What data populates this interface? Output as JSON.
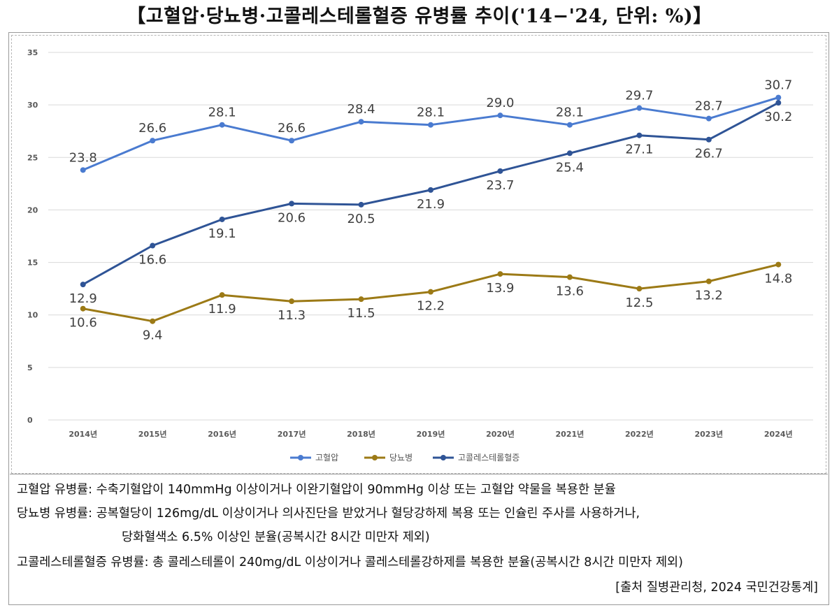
{
  "title": "【고혈압·당뇨병·고콜레스테롤혈증 유병률 추이('14−'24, 단위: %)】",
  "chart_data": {
    "type": "line",
    "categories": [
      "2014년",
      "2015년",
      "2016년",
      "2017년",
      "2018년",
      "2019년",
      "2020년",
      "2021년",
      "2022년",
      "2023년",
      "2024년"
    ],
    "ylim": [
      0,
      35
    ],
    "yticks": [
      "0",
      "5",
      "10",
      "15",
      "20",
      "25",
      "30",
      "35"
    ],
    "grid": true,
    "legend_position": "bottom",
    "series": [
      {
        "name": "고혈압",
        "color": "#4a7bd0",
        "values": [
          23.8,
          26.6,
          28.1,
          26.6,
          28.4,
          28.1,
          29.0,
          28.1,
          29.7,
          28.7,
          30.7
        ],
        "labels": [
          "23.8",
          "26.6",
          "28.1",
          "26.6",
          "28.4",
          "28.1",
          "29.0",
          "28.1",
          "29.7",
          "28.7",
          "30.7"
        ],
        "label_side": [
          "above",
          "above",
          "above",
          "above",
          "above",
          "above",
          "above",
          "above",
          "above",
          "above",
          "above"
        ]
      },
      {
        "name": "당뇨병",
        "color": "#9c7a16",
        "values": [
          10.6,
          9.4,
          11.9,
          11.3,
          11.5,
          12.2,
          13.9,
          13.6,
          12.5,
          13.2,
          14.8
        ],
        "labels": [
          "10.6",
          "9.4",
          "11.9",
          "11.3",
          "11.5",
          "12.2",
          "13.9",
          "13.6",
          "12.5",
          "13.2",
          "14.8"
        ],
        "label_side": [
          "below",
          "below",
          "below",
          "below",
          "below",
          "below",
          "below",
          "below",
          "below",
          "below",
          "below"
        ]
      },
      {
        "name": "고콜레스테롤혈증",
        "color": "#2f5496",
        "values": [
          12.9,
          16.6,
          19.1,
          20.6,
          20.5,
          21.9,
          23.7,
          25.4,
          27.1,
          26.7,
          30.2
        ],
        "labels": [
          "12.9",
          "16.6",
          "19.1",
          "20.6",
          "20.5",
          "21.9",
          "23.7",
          "25.4",
          "27.1",
          "26.7",
          "30.2"
        ],
        "label_side": [
          "below",
          "below",
          "below",
          "below",
          "below",
          "below",
          "below",
          "below",
          "below",
          "below",
          "below"
        ]
      }
    ]
  },
  "notes": {
    "line1": "고혈압 유병률: 수축기혈압이 140mmHg 이상이거나 이완기혈압이 90mmHg 이상 또는 고혈압 약물을 복용한 분율",
    "line2": "당뇨병 유병률: 공복혈당이 126mg/dL 이상이거나 의사진단을 받았거나 혈당강하제 복용 또는 인슐린 주사를 사용하거나,",
    "line3": "당화혈색소 6.5% 이상인 분율(공복시간 8시간 미만자 제외)",
    "line4": "고콜레스테롤혈증 유병률: 총 콜레스테롤이 240mg/dL 이상이거나 콜레스테롤강하제를 복용한 분율(공복시간 8시간 미만자 제외)",
    "source": "[출처 질병관리청, 2024 국민건강통계]"
  }
}
